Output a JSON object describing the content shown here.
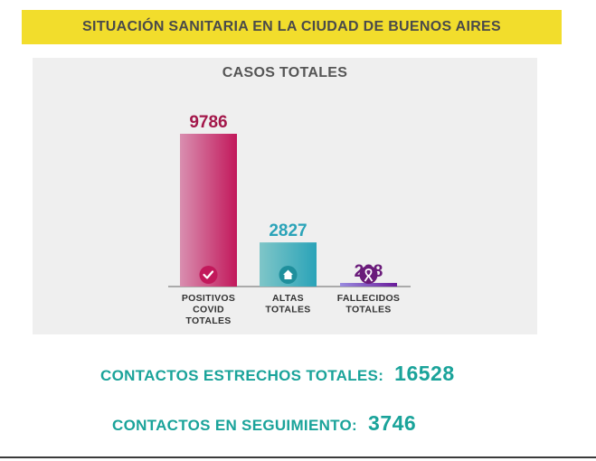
{
  "header": {
    "title": "SITUACIÓN SANITARIA EN LA CIUDAD DE BUENOS AIRES",
    "background": "#f2dd2c"
  },
  "stats": {
    "contacts_label": "CONTACTOS ESTRECHOS TOTALES:",
    "contacts_value": "16528",
    "followup_label": "CONTACTOS EN SEGUIMIENTO:",
    "followup_value": "3746",
    "color": "#1aa39a"
  },
  "chart_data": {
    "type": "bar",
    "title": "CASOS TOTALES",
    "categories": [
      [
        "POSITIVOS",
        "COVID",
        "TOTALES"
      ],
      [
        "ALTAS",
        "TOTALES"
      ],
      [
        "FALLECIDOS",
        "TOTALES"
      ]
    ],
    "values": [
      9786,
      2827,
      228
    ],
    "ylim": [
      0,
      9786
    ],
    "grid": false,
    "bar_colors": [
      [
        "#d98fb0",
        "#c2185b"
      ],
      [
        "#7fc6c8",
        "#2aa3b8"
      ],
      [
        "#9a8ce0",
        "#6a1b9a"
      ]
    ],
    "label_colors": [
      "#a3174a",
      "#2aa3b8",
      "#6a1b7a"
    ],
    "icons": [
      "check-icon",
      "home-icon",
      "ribbon-icon"
    ]
  }
}
